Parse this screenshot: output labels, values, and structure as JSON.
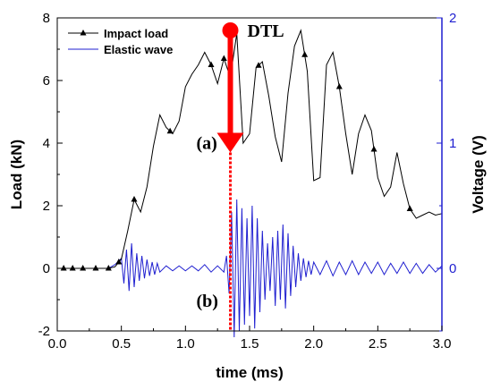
{
  "chart_data": {
    "type": "line",
    "xlabel": "time (ms)",
    "ylabel": "Load (kN)",
    "y2label": "Voltage (V)",
    "xlim": [
      0.0,
      3.0
    ],
    "ylim": [
      -2,
      8
    ],
    "y2lim": [
      -0.5,
      2
    ],
    "xticks": [
      0.0,
      0.5,
      1.0,
      1.5,
      2.0,
      2.5,
      3.0
    ],
    "xtick_labels": [
      "0.0",
      "0.5",
      "1.0",
      "1.5",
      "2.0",
      "2.5",
      "3.0"
    ],
    "yticks": [
      -2,
      0,
      2,
      4,
      6,
      8
    ],
    "ytick_labels": [
      "-2",
      "0",
      "2",
      "4",
      "6",
      "8"
    ],
    "y2ticks": [
      0,
      1,
      2
    ],
    "y2tick_labels": [
      "0",
      "1",
      "2"
    ],
    "grid": false,
    "legend_position": "top-left",
    "colors": {
      "load": "#000000",
      "wave": "#1f1fd0",
      "annotation": "#ff0000"
    },
    "series": [
      {
        "name": "Impact load",
        "axis": "left",
        "marker": "triangle",
        "x": [
          0.0,
          0.1,
          0.2,
          0.3,
          0.4,
          0.45,
          0.5,
          0.55,
          0.6,
          0.65,
          0.7,
          0.75,
          0.8,
          0.85,
          0.9,
          0.95,
          1.0,
          1.05,
          1.1,
          1.15,
          1.2,
          1.25,
          1.3,
          1.35,
          1.4,
          1.45,
          1.5,
          1.55,
          1.6,
          1.65,
          1.7,
          1.75,
          1.8,
          1.85,
          1.9,
          1.95,
          2.0,
          2.05,
          2.1,
          2.15,
          2.2,
          2.25,
          2.3,
          2.35,
          2.4,
          2.45,
          2.5,
          2.55,
          2.6,
          2.65,
          2.7,
          2.75,
          2.8,
          2.85,
          2.9,
          2.95,
          3.0
        ],
        "y": [
          0.0,
          0.0,
          0.0,
          0.0,
          0.0,
          0.05,
          0.3,
          1.2,
          2.2,
          1.8,
          2.6,
          3.9,
          4.9,
          4.5,
          4.3,
          4.7,
          5.8,
          6.2,
          6.5,
          6.9,
          6.5,
          5.9,
          6.7,
          6.1,
          7.5,
          4.0,
          4.3,
          6.4,
          6.6,
          5.5,
          4.2,
          3.4,
          5.6,
          7.1,
          7.6,
          6.3,
          2.8,
          2.9,
          6.5,
          6.9,
          5.8,
          4.3,
          3.0,
          4.3,
          4.9,
          4.4,
          2.9,
          2.3,
          2.6,
          3.7,
          2.7,
          1.9,
          1.6,
          1.7,
          1.8,
          1.7,
          1.75
        ],
        "marker_x": [
          0.05,
          0.12,
          0.2,
          0.3,
          0.4,
          0.48,
          0.6,
          0.88,
          1.2,
          1.3,
          1.57,
          1.93,
          2.2,
          2.47,
          2.75
        ]
      },
      {
        "name": "Elastic wave",
        "axis": "right",
        "marker": "none",
        "x": [
          0.0,
          0.1,
          0.2,
          0.3,
          0.4,
          0.45,
          0.5,
          0.52,
          0.54,
          0.56,
          0.58,
          0.6,
          0.62,
          0.64,
          0.66,
          0.68,
          0.7,
          0.72,
          0.74,
          0.76,
          0.78,
          0.8,
          0.85,
          0.9,
          0.95,
          1.0,
          1.05,
          1.1,
          1.15,
          1.2,
          1.25,
          1.3,
          1.32,
          1.34,
          1.36,
          1.38,
          1.4,
          1.42,
          1.44,
          1.46,
          1.48,
          1.5,
          1.52,
          1.54,
          1.56,
          1.58,
          1.6,
          1.62,
          1.64,
          1.66,
          1.68,
          1.7,
          1.72,
          1.74,
          1.76,
          1.78,
          1.8,
          1.82,
          1.84,
          1.86,
          1.88,
          1.9,
          1.92,
          1.94,
          1.96,
          1.98,
          2.0,
          2.05,
          2.1,
          2.15,
          2.2,
          2.25,
          2.3,
          2.35,
          2.4,
          2.45,
          2.5,
          2.55,
          2.6,
          2.65,
          2.7,
          2.75,
          2.8,
          2.85,
          2.9,
          2.95,
          3.0
        ],
        "y": [
          0.0,
          0.0,
          0.0,
          0.0,
          0.0,
          0.03,
          0.08,
          -0.12,
          0.15,
          -0.18,
          0.2,
          -0.15,
          0.12,
          -0.1,
          0.1,
          -0.08,
          0.07,
          -0.06,
          0.05,
          -0.05,
          0.04,
          -0.03,
          0.02,
          -0.02,
          0.02,
          -0.02,
          0.02,
          -0.02,
          0.03,
          -0.03,
          0.02,
          -0.03,
          0.1,
          -0.2,
          0.45,
          -0.55,
          0.55,
          -0.5,
          0.48,
          -0.45,
          0.4,
          -0.38,
          0.5,
          -0.48,
          0.4,
          -0.35,
          0.3,
          -0.25,
          0.2,
          -0.18,
          0.25,
          -0.3,
          0.3,
          -0.25,
          0.35,
          -0.32,
          0.28,
          -0.22,
          0.18,
          -0.15,
          0.12,
          -0.1,
          0.08,
          -0.07,
          0.06,
          -0.05,
          0.05,
          -0.05,
          0.06,
          -0.06,
          0.05,
          -0.05,
          0.06,
          -0.05,
          0.05,
          -0.04,
          0.05,
          -0.05,
          0.04,
          -0.04,
          0.05,
          -0.04,
          0.04,
          -0.04,
          0.03,
          -0.03,
          0.02
        ]
      }
    ],
    "annotations": {
      "dtl": {
        "label": "DTL",
        "x": 1.35,
        "y_top": 7.6,
        "y_arrow_tip": 3.7
      },
      "label_a": "(a)",
      "label_b": "(b)"
    }
  }
}
